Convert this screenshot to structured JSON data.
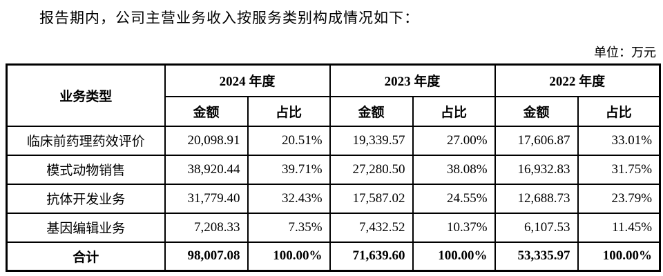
{
  "page": {
    "title": "报告期内，公司主营业务收入按服务类别构成情况如下：",
    "unit_label": "单位：万元"
  },
  "table": {
    "corner_header": "业务类型",
    "year_groups": [
      {
        "label": "2024 年度"
      },
      {
        "label": "2023 年度"
      },
      {
        "label": "2022 年度"
      }
    ],
    "sub_headers": {
      "amount": "金额",
      "ratio": "占比"
    },
    "rows": [
      {
        "category": "临床前药理药效评价",
        "values": [
          "20,098.91",
          "20.51%",
          "19,339.57",
          "27.00%",
          "17,606.87",
          "33.01%"
        ]
      },
      {
        "category": "模式动物销售",
        "values": [
          "38,920.44",
          "39.71%",
          "27,280.50",
          "38.08%",
          "16,932.83",
          "31.75%"
        ]
      },
      {
        "category": "抗体开发业务",
        "values": [
          "31,779.40",
          "32.43%",
          "17,587.02",
          "24.55%",
          "12,688.73",
          "23.79%"
        ]
      },
      {
        "category": "基因编辑业务",
        "values": [
          "7,208.33",
          "7.35%",
          "7,432.52",
          "10.37%",
          "6,107.53",
          "11.45%"
        ]
      }
    ],
    "total_row": {
      "category": "合计",
      "values": [
        "98,007.08",
        "100.00%",
        "71,639.60",
        "100.00%",
        "53,335.97",
        "100.00%"
      ]
    }
  },
  "colors": {
    "text": "#000000",
    "border": "#000000",
    "background": "#ffffff"
  }
}
